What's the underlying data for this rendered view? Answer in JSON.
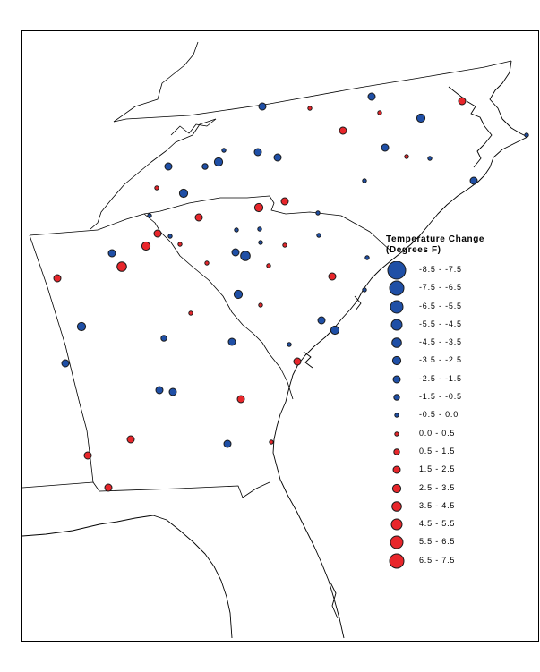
{
  "legend": {
    "title_line1": "Temperature Change",
    "title_line2": "(Degrees F)",
    "items": [
      {
        "label": "-8.5 - -7.5",
        "color": "#1f4fa6",
        "size_rank": 9
      },
      {
        "label": "-7.5 - -6.5",
        "color": "#1f4fa6",
        "size_rank": 8
      },
      {
        "label": "-6.5 - -5.5",
        "color": "#1f4fa6",
        "size_rank": 7
      },
      {
        "label": "-5.5 - -4.5",
        "color": "#1f4fa6",
        "size_rank": 6
      },
      {
        "label": "-4.5 - -3.5",
        "color": "#1f4fa6",
        "size_rank": 5
      },
      {
        "label": "-3.5 - -2.5",
        "color": "#1f4fa6",
        "size_rank": 4
      },
      {
        "label": "-2.5 - -1.5",
        "color": "#1f4fa6",
        "size_rank": 3
      },
      {
        "label": "-1.5 - -0.5",
        "color": "#1f4fa6",
        "size_rank": 2
      },
      {
        "label": "-0.5 - 0.0",
        "color": "#1f4fa6",
        "size_rank": 1
      },
      {
        "label": "0.0 - 0.5",
        "color": "#e8262b",
        "size_rank": 1
      },
      {
        "label": "0.5 - 1.5",
        "color": "#e8262b",
        "size_rank": 2
      },
      {
        "label": "1.5 - 2.5",
        "color": "#e8262b",
        "size_rank": 3
      },
      {
        "label": "2.5 - 3.5",
        "color": "#e8262b",
        "size_rank": 4
      },
      {
        "label": "3.5 - 4.5",
        "color": "#e8262b",
        "size_rank": 5
      },
      {
        "label": "4.5 - 5.5",
        "color": "#e8262b",
        "size_rank": 6
      },
      {
        "label": "5.5 - 6.5",
        "color": "#e8262b",
        "size_rank": 7
      },
      {
        "label": "6.5 - 7.5",
        "color": "#e8262b",
        "size_rank": 8
      }
    ]
  },
  "colors": {
    "cooling": "#1f4fa6",
    "warming": "#e8262b"
  }
}
